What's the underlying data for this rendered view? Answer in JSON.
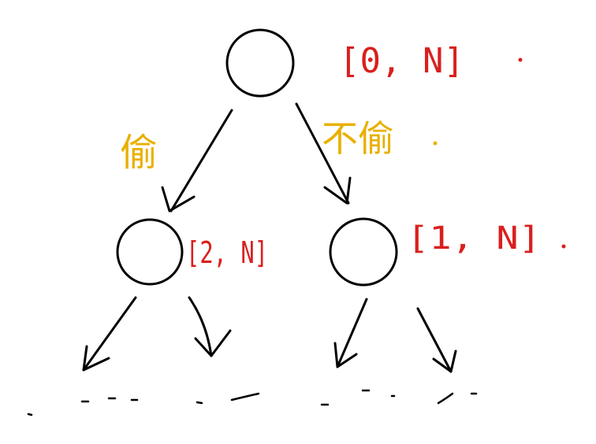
{
  "diagram": {
    "root": {
      "range_label": "[0, N]"
    },
    "left_branch": {
      "edge_label": "偷"
    },
    "right_branch": {
      "edge_label": "不偷"
    },
    "left_child": {
      "range_label": "[2, N]"
    },
    "right_child": {
      "range_label": "[1, N]"
    },
    "continuation": "- - -    - -    -  - -    - -"
  },
  "colors": {
    "range": "#d9201e",
    "choice": "#e9b000",
    "stroke": "#000000"
  }
}
